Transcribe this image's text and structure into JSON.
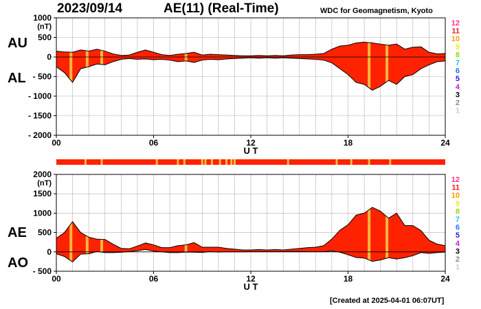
{
  "header": {
    "date": "2023/09/14",
    "index_title": "AE(11) (Real-Time)",
    "credit": "WDC for Geomagnetism, Kyoto"
  },
  "footer": {
    "created": "[Created at 2025-04-01 06:07UT]"
  },
  "labels": {
    "au": "AU",
    "al": "AL",
    "ae": "AE",
    "ao": "AO"
  },
  "colors": {
    "fill_main": "#ff2200",
    "highlight": "#f2b93b",
    "outline": "#000000",
    "grid": "#b0b0b0"
  },
  "legend": [
    {
      "n": "12",
      "color": "#ff2f92"
    },
    {
      "n": "11",
      "color": "#ee1c1c"
    },
    {
      "n": "10",
      "color": "#ff9b00"
    },
    {
      "n": "9",
      "color": "#e6ee22"
    },
    {
      "n": "8",
      "color": "#9bd50b"
    },
    {
      "n": "7",
      "color": "#1cc0e8"
    },
    {
      "n": "6",
      "color": "#1e73ff"
    },
    {
      "n": "5",
      "color": "#2b1bd6"
    },
    {
      "n": "4",
      "color": "#c018e0"
    },
    {
      "n": "3",
      "color": "#000000"
    },
    {
      "n": "2",
      "color": "#888888"
    },
    {
      "n": "1",
      "color": "#cccccc"
    }
  ],
  "station_hours": [
    0.9,
    1.9,
    2.8,
    8.0,
    19.3,
    20.4
  ],
  "strip_hours": [
    1.8,
    2.8,
    6.2,
    7.5,
    7.9,
    9.0,
    9.2,
    9.6,
    10.1,
    10.5,
    10.8,
    11.0,
    14.3,
    17.3,
    18.2,
    19.3,
    20.6
  ],
  "chart_data": [
    {
      "type": "area",
      "title": "AU / AL",
      "xlabel": "U T",
      "ylabel": "(nT)",
      "xlim": [
        0,
        24
      ],
      "ylim": [
        -2000,
        1000
      ],
      "x_ticks": [
        "00",
        "06",
        "12",
        "18",
        "24"
      ],
      "y_ticks": [
        "1000",
        "500",
        "0",
        "- 500",
        "- 1000",
        "- 1500",
        "- 2000"
      ],
      "y_tick_values": [
        1000,
        500,
        0,
        -500,
        -1000,
        -1500,
        -2000
      ],
      "grid": true,
      "series": [
        {
          "name": "AU",
          "x": [
            0,
            0.5,
            1,
            1.5,
            2,
            2.5,
            3,
            3.5,
            4,
            4.5,
            5,
            5.5,
            6,
            6.5,
            7,
            7.5,
            8,
            8.5,
            9,
            9.5,
            10,
            10.5,
            11,
            11.5,
            12,
            12.5,
            13,
            13.5,
            14,
            14.5,
            15,
            15.5,
            16,
            16.5,
            17,
            17.5,
            18,
            18.5,
            19,
            19.5,
            20,
            20.5,
            21,
            21.5,
            22,
            22.5,
            23,
            23.5,
            24
          ],
          "values": [
            150,
            130,
            120,
            180,
            150,
            200,
            150,
            80,
            40,
            50,
            120,
            180,
            120,
            60,
            40,
            70,
            90,
            120,
            50,
            70,
            60,
            50,
            40,
            30,
            30,
            40,
            30,
            40,
            30,
            50,
            60,
            60,
            70,
            90,
            200,
            280,
            300,
            360,
            380,
            360,
            330,
            300,
            330,
            200,
            250,
            260,
            120,
            80,
            90
          ]
        },
        {
          "name": "AL",
          "x": [
            0,
            0.5,
            1,
            1.5,
            2,
            2.5,
            3,
            3.5,
            4,
            4.5,
            5,
            5.5,
            6,
            6.5,
            7,
            7.5,
            8,
            8.5,
            9,
            9.5,
            10,
            10.5,
            11,
            11.5,
            12,
            12.5,
            13,
            13.5,
            14,
            14.5,
            15,
            15.5,
            16,
            16.5,
            17,
            17.5,
            18,
            18.5,
            19,
            19.5,
            20,
            20.5,
            21,
            21.5,
            22,
            22.5,
            23,
            23.5,
            24
          ],
          "values": [
            -250,
            -400,
            -650,
            -300,
            -250,
            -180,
            -200,
            -120,
            -60,
            -40,
            -60,
            -50,
            -70,
            -60,
            -80,
            -120,
            -100,
            -140,
            -80,
            -60,
            -70,
            -50,
            -40,
            -30,
            -20,
            -30,
            -20,
            -30,
            -20,
            -30,
            -40,
            -50,
            -60,
            -80,
            -150,
            -300,
            -450,
            -650,
            -700,
            -850,
            -750,
            -600,
            -700,
            -500,
            -450,
            -300,
            -200,
            -120,
            -100
          ]
        }
      ]
    },
    {
      "type": "area",
      "title": "AE / AO",
      "xlabel": "U T",
      "ylabel": "(nT)",
      "xlim": [
        0,
        24
      ],
      "ylim": [
        -500,
        2000
      ],
      "x_ticks": [
        "00",
        "06",
        "12",
        "18",
        "24"
      ],
      "y_ticks": [
        "2000",
        "1500",
        "1000",
        "500",
        "0",
        "- 500"
      ],
      "y_tick_values": [
        2000,
        1500,
        1000,
        500,
        0,
        -500
      ],
      "grid": true,
      "series": [
        {
          "name": "AE",
          "x": [
            0,
            0.5,
            1,
            1.5,
            2,
            2.5,
            3,
            3.5,
            4,
            4.5,
            5,
            5.5,
            6,
            6.5,
            7,
            7.5,
            8,
            8.5,
            9,
            9.5,
            10,
            10.5,
            11,
            11.5,
            12,
            12.5,
            13,
            13.5,
            14,
            14.5,
            15,
            15.5,
            16,
            16.5,
            17,
            17.5,
            18,
            18.5,
            19,
            19.5,
            20,
            20.5,
            21,
            21.5,
            22,
            22.5,
            23,
            23.5,
            24
          ],
          "values": [
            350,
            500,
            780,
            500,
            380,
            330,
            320,
            200,
            90,
            80,
            150,
            230,
            180,
            110,
            110,
            160,
            180,
            240,
            120,
            120,
            120,
            90,
            70,
            50,
            50,
            60,
            50,
            60,
            50,
            70,
            90,
            110,
            120,
            160,
            330,
            560,
            700,
            950,
            1000,
            1150,
            1050,
            870,
            1000,
            680,
            680,
            550,
            300,
            200,
            160
          ]
        },
        {
          "name": "AO",
          "x": [
            0,
            0.5,
            1,
            1.5,
            2,
            2.5,
            3,
            3.5,
            4,
            4.5,
            5,
            5.5,
            6,
            6.5,
            7,
            7.5,
            8,
            8.5,
            9,
            9.5,
            10,
            10.5,
            11,
            11.5,
            12,
            12.5,
            13,
            13.5,
            14,
            14.5,
            15,
            15.5,
            16,
            16.5,
            17,
            17.5,
            18,
            18.5,
            19,
            19.5,
            20,
            20.5,
            21,
            21.5,
            22,
            22.5,
            23,
            23.5,
            24
          ],
          "values": [
            -50,
            -120,
            -260,
            -60,
            -50,
            10,
            -20,
            -20,
            -10,
            5,
            30,
            60,
            20,
            0,
            -20,
            -20,
            -5,
            -10,
            -15,
            5,
            -5,
            0,
            0,
            0,
            5,
            5,
            5,
            5,
            5,
            10,
            10,
            5,
            5,
            5,
            25,
            -10,
            -75,
            -145,
            -160,
            -245,
            -210,
            -150,
            -185,
            -150,
            -100,
            -20,
            -40,
            -20,
            -5
          ]
        }
      ]
    }
  ]
}
